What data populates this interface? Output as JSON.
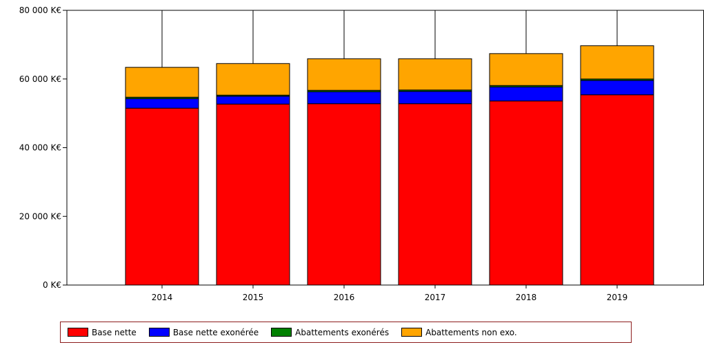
{
  "chart_data": {
    "type": "bar",
    "stacked": true,
    "categories": [
      "2014",
      "2015",
      "2016",
      "2017",
      "2018",
      "2019"
    ],
    "series": [
      {
        "name": "Base nette",
        "color": "#ff0000",
        "values": [
          51500,
          52700,
          52800,
          52800,
          53600,
          55400
        ]
      },
      {
        "name": "Base nette exonérée",
        "color": "#0000ff",
        "values": [
          2800,
          2300,
          3500,
          3600,
          4100,
          4200
        ]
      },
      {
        "name": "Abattements exonérés",
        "color": "#008000",
        "values": [
          400,
          300,
          400,
          400,
          400,
          400
        ]
      },
      {
        "name": "Abattements non exo.",
        "color": "#ffa500",
        "values": [
          8700,
          9200,
          9200,
          9100,
          9300,
          9700
        ]
      }
    ],
    "ylim": [
      0,
      80000
    ],
    "yticks": [
      0,
      20000,
      40000,
      60000,
      80000
    ],
    "ytick_labels": [
      "0 K€",
      "20 000 K€",
      "40 000 K€",
      "60 000 K€",
      "80 000 K€"
    ],
    "grid": {
      "vertical_lines_through_categories": true,
      "horizontal": false
    },
    "legend_position": "bottom",
    "title": "",
    "xlabel": "",
    "ylabel": ""
  }
}
